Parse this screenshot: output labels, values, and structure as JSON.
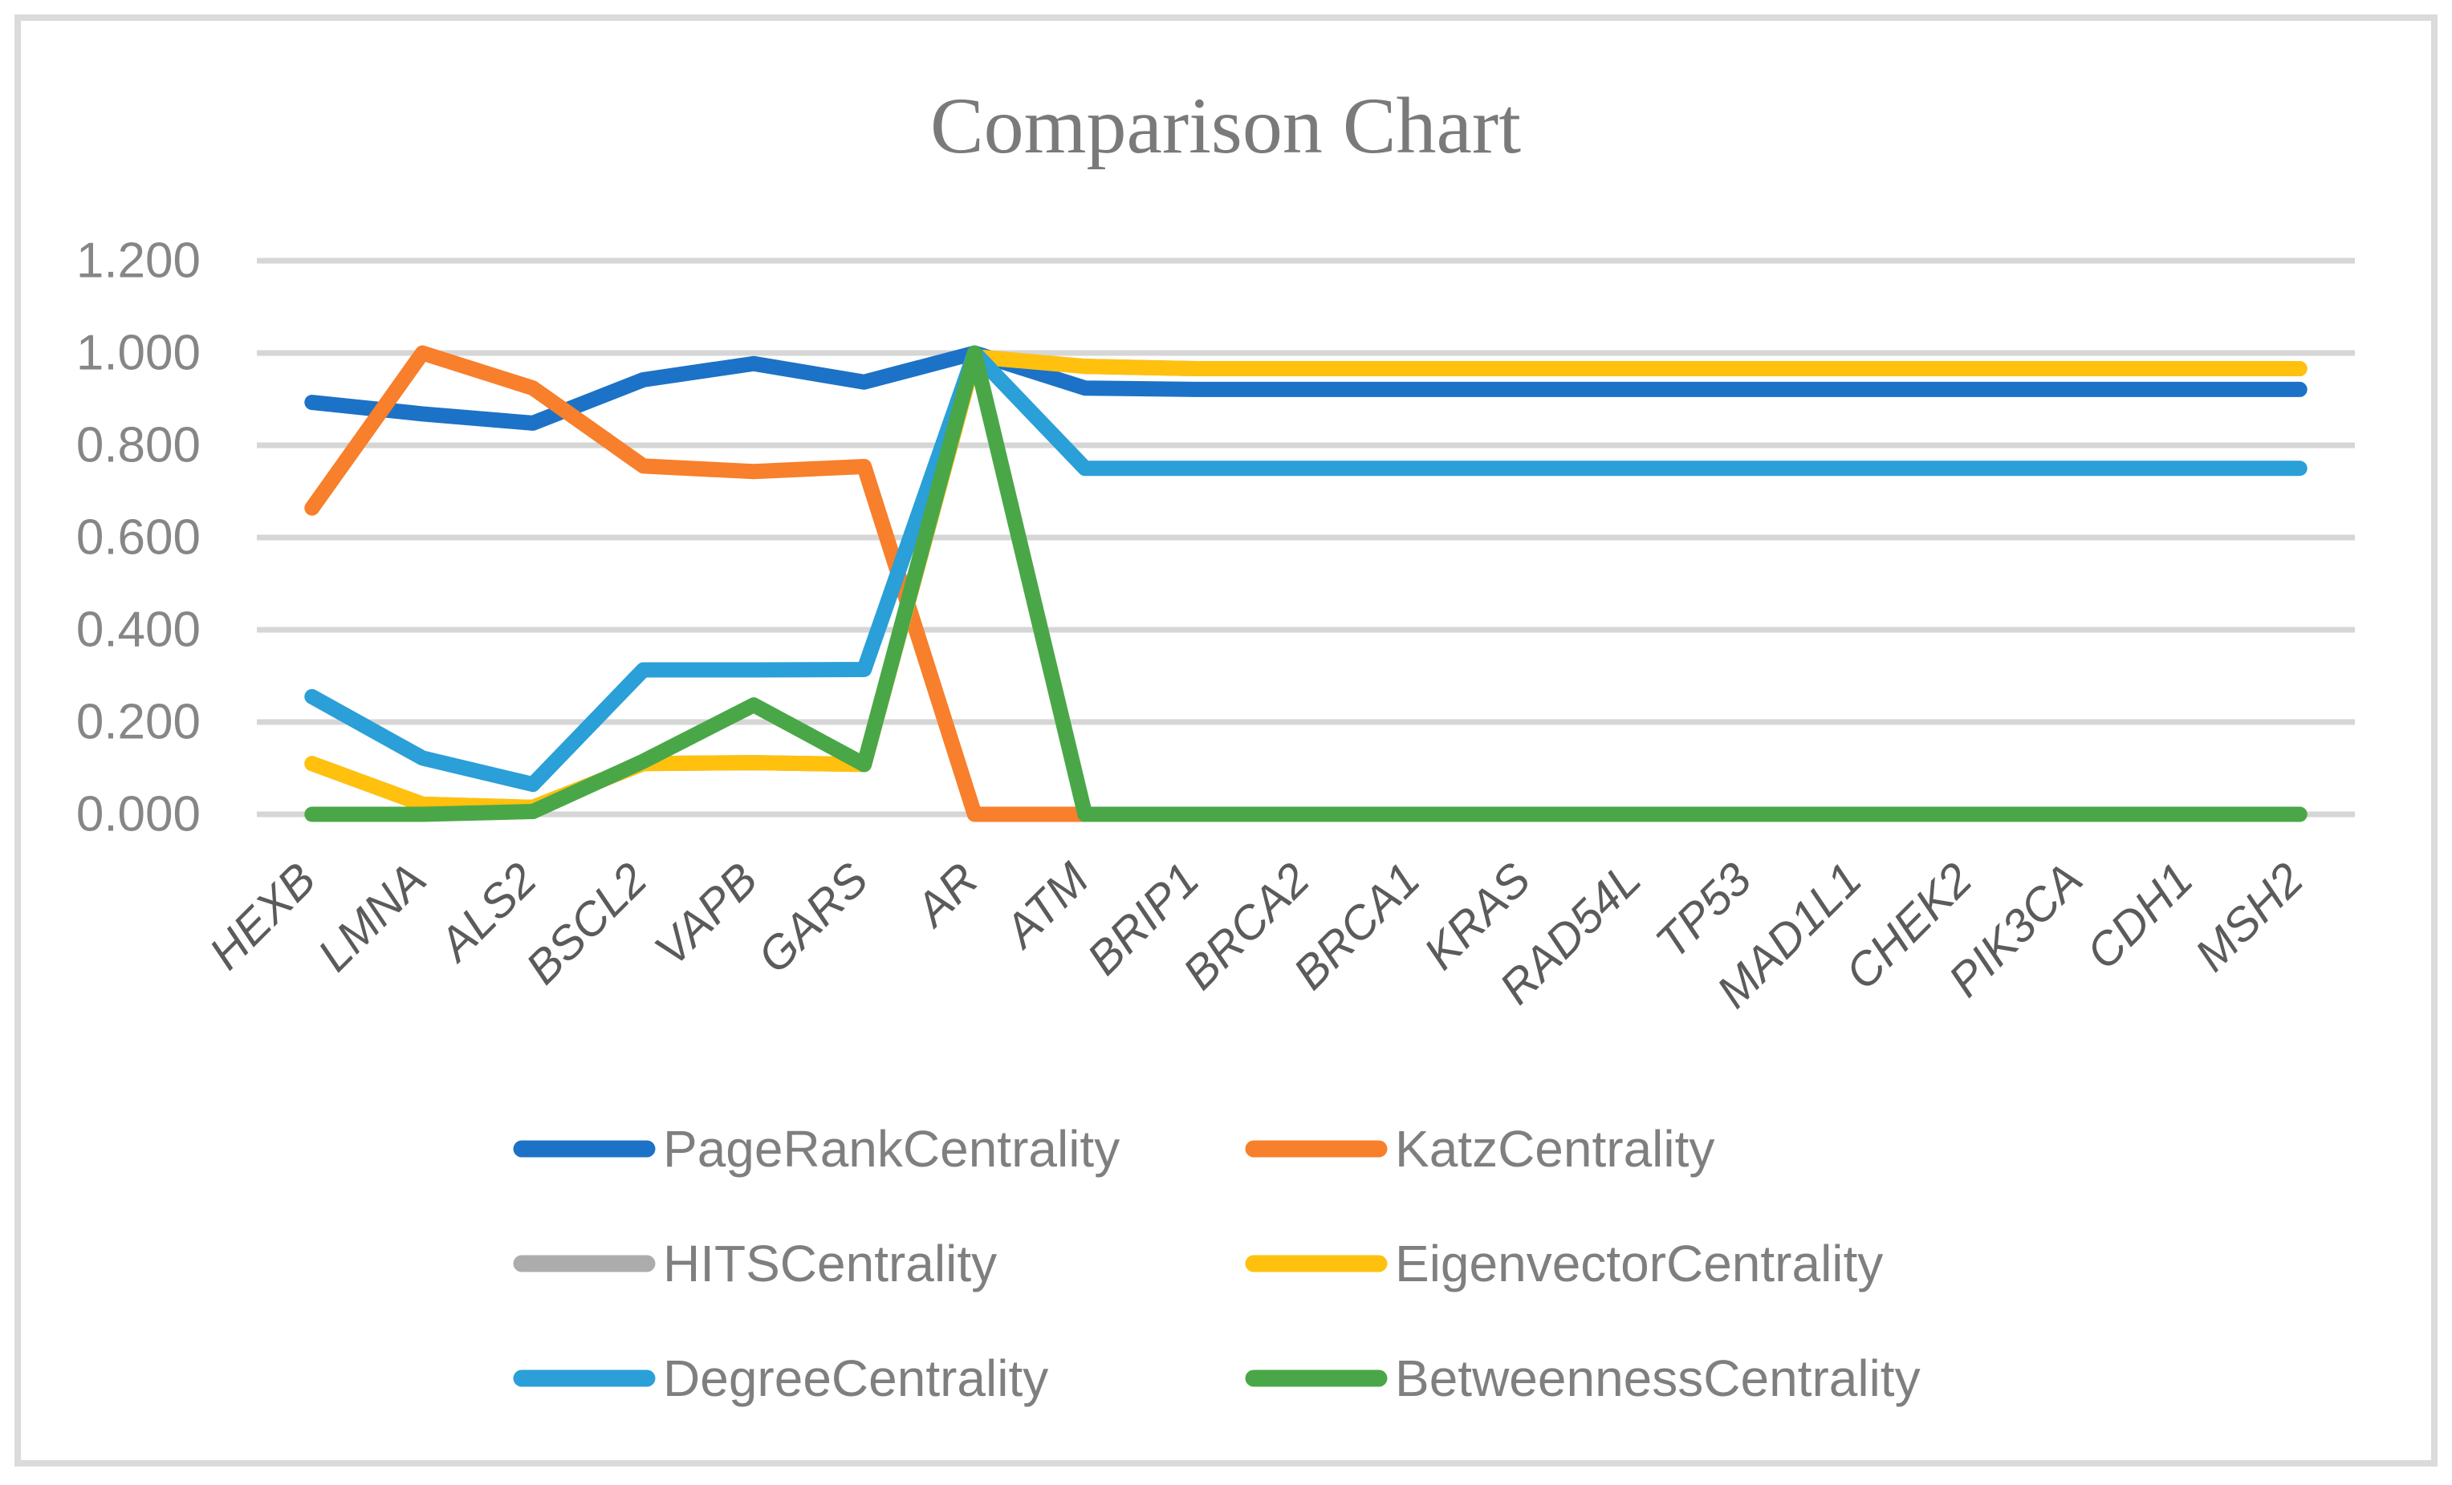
{
  "figure": {
    "title": "Comparison Chart",
    "background": "#ffffff",
    "border_color": "#dbdbdb",
    "title_color": "#7a7a7a"
  },
  "chart_data": {
    "type": "line",
    "title": "Comparison Chart",
    "categories": [
      "HEXB",
      "LMNA",
      "ALS2",
      "BSCL2",
      "VAPB",
      "GARS",
      "AR",
      "ATM",
      "BRIP1",
      "BRCA2",
      "BRCA1",
      "KRAS",
      "RAD54L",
      "TP53",
      "MAD1L1",
      "CHEK2",
      "PIK3CA",
      "CDH1",
      "MSH2"
    ],
    "series": [
      {
        "name": "PageRankCentrality",
        "color": "#1c72c6",
        "values": [
          0.893,
          0.868,
          0.848,
          0.942,
          0.977,
          0.937,
          1.0,
          0.924,
          0.921,
          0.921,
          0.921,
          0.921,
          0.921,
          0.921,
          0.921,
          0.921,
          0.921,
          0.921,
          0.921
        ]
      },
      {
        "name": "KatzCentrality",
        "color": "#f87f2b",
        "values": [
          0.664,
          1.0,
          0.924,
          0.755,
          0.743,
          0.754,
          0.0,
          0.0,
          0.0,
          0.0,
          0.0,
          0.0,
          0.0,
          0.0,
          0.0,
          0.0,
          0.0,
          0.0,
          0.0
        ]
      },
      {
        "name": "HITSCentrality",
        "color": "#acacac",
        "values": [
          0.11,
          0.022,
          0.015,
          0.11,
          0.112,
          0.108,
          0.992,
          0.971,
          0.966,
          0.966,
          0.966,
          0.966,
          0.966,
          0.966,
          0.966,
          0.966,
          0.966,
          0.966,
          0.966
        ]
      },
      {
        "name": "EigenvectorCentrality",
        "color": "#ffc10d",
        "values": [
          0.11,
          0.022,
          0.015,
          0.11,
          0.112,
          0.108,
          0.992,
          0.971,
          0.966,
          0.966,
          0.966,
          0.966,
          0.966,
          0.966,
          0.966,
          0.966,
          0.966,
          0.966,
          0.966
        ]
      },
      {
        "name": "DegreeCentrality",
        "color": "#2a9fd8",
        "values": [
          0.255,
          0.122,
          0.065,
          0.313,
          0.313,
          0.314,
          1.0,
          0.75,
          0.75,
          0.75,
          0.75,
          0.75,
          0.75,
          0.75,
          0.75,
          0.75,
          0.75,
          0.75,
          0.75
        ]
      },
      {
        "name": "BetweennessCentrality",
        "color": "#4aa748",
        "values": [
          0.0,
          0.0,
          0.006,
          0.115,
          0.237,
          0.108,
          1.0,
          0.0,
          0.0,
          0.0,
          0.0,
          0.0,
          0.0,
          0.0,
          0.0,
          0.0,
          0.0,
          0.0,
          0.0
        ]
      }
    ],
    "ylim": [
      0,
      1.2
    ],
    "y_tick_labels": [
      "0.000",
      "0.200",
      "0.400",
      "0.600",
      "0.800",
      "1.000",
      "1.200"
    ],
    "grid": "horizontal",
    "gridline_color": "#d6d6d6",
    "y_label_color": "#868686",
    "x_label_color": "#5b5b5b",
    "legend_position": "bottom",
    "legend_text_color": "#7f7f7f"
  }
}
